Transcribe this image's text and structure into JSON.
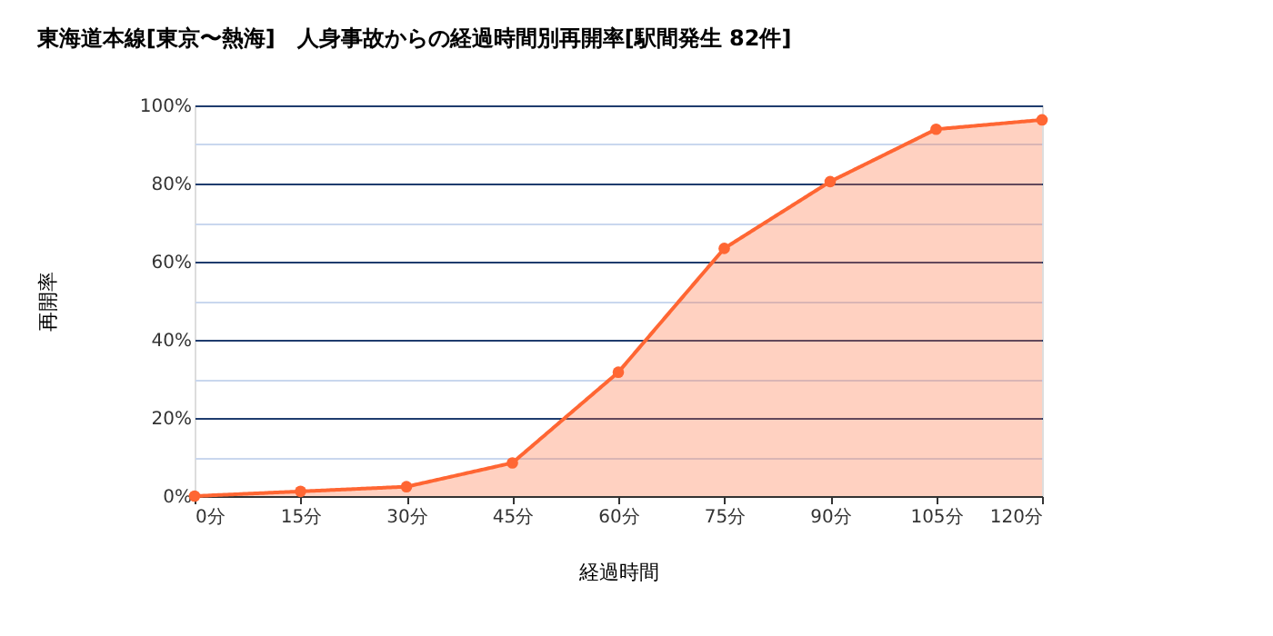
{
  "chart_data": {
    "type": "area",
    "title": "東海道本線[東京〜熱海]　人身事故からの経過時間別再開率[駅間発生 82件]",
    "xlabel": "経過時間",
    "ylabel": "再開率",
    "x": [
      0,
      15,
      30,
      45,
      60,
      75,
      90,
      105,
      120
    ],
    "series": [
      {
        "color": "#ff6633",
        "values": [
          0,
          1.2,
          2.4,
          8.5,
          31.7,
          63.4,
          80.5,
          93.9,
          96.3
        ]
      }
    ],
    "xlim": [
      0,
      120
    ],
    "xticks": [
      {
        "value": 0,
        "label": "0分"
      },
      {
        "value": 15,
        "label": "15分"
      },
      {
        "value": 30,
        "label": "30分"
      },
      {
        "value": 45,
        "label": "45分"
      },
      {
        "value": 60,
        "label": "60分"
      },
      {
        "value": 75,
        "label": "75分"
      },
      {
        "value": 90,
        "label": "90分"
      },
      {
        "value": 105,
        "label": "105分"
      },
      {
        "value": 120,
        "label": "120分"
      }
    ],
    "ylim": [
      0,
      100
    ],
    "yticks": [
      {
        "value": 0,
        "label": "0%"
      },
      {
        "value": 10,
        "label": null
      },
      {
        "value": 20,
        "label": "20%"
      },
      {
        "value": 30,
        "label": null
      },
      {
        "value": 40,
        "label": "40%"
      },
      {
        "value": 50,
        "label": null
      },
      {
        "value": 60,
        "label": "60%"
      },
      {
        "value": 70,
        "label": null
      },
      {
        "value": 80,
        "label": "80%"
      },
      {
        "value": 90,
        "label": null
      },
      {
        "value": 100,
        "label": "100%"
      }
    ],
    "grid": "y",
    "marker": "circle"
  }
}
